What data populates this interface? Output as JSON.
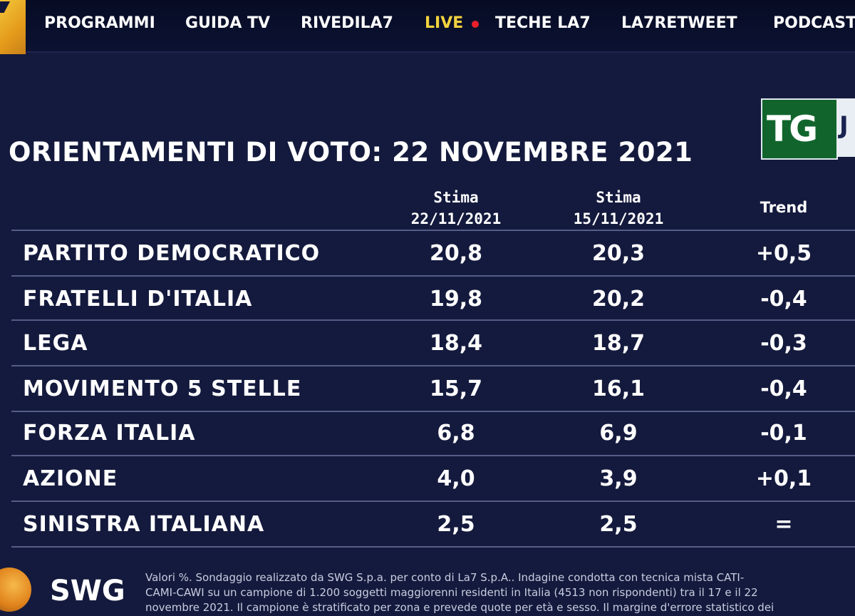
{
  "nav": {
    "items": [
      {
        "label": "PROGRAMMI"
      },
      {
        "label": "GUIDA TV"
      },
      {
        "label": "RIVEDILA7"
      },
      {
        "label": "LIVE"
      },
      {
        "label": "TECHE LA7"
      },
      {
        "label": "LA7RETWEET"
      },
      {
        "label": "PODCAST"
      }
    ]
  },
  "badge": {
    "text": "TG",
    "partial": "J"
  },
  "title": "ORIENTAMENTI DI VOTO: 22 NOVEMBRE 2021",
  "columns": {
    "c1_line1": "Stima",
    "c1_line2": "22/11/2021",
    "c2_line1": "Stima",
    "c2_line2": "15/11/2021",
    "c3": "Trend"
  },
  "rows": [
    {
      "party": "PARTITO DEMOCRATICO",
      "v1": "20,8",
      "v2": "20,3",
      "trend": "+0,5"
    },
    {
      "party": "FRATELLI D'ITALIA",
      "v1": "19,8",
      "v2": "20,2",
      "trend": "-0,4"
    },
    {
      "party": "LEGA",
      "v1": "18,4",
      "v2": "18,7",
      "trend": "-0,3"
    },
    {
      "party": "MOVIMENTO 5 STELLE",
      "v1": "15,7",
      "v2": "16,1",
      "trend": "-0,4"
    },
    {
      "party": "FORZA ITALIA",
      "v1": "6,8",
      "v2": "6,9",
      "trend": "-0,1"
    },
    {
      "party": "AZIONE",
      "v1": "4,0",
      "v2": "3,9",
      "trend": "+0,1"
    },
    {
      "party": "SINISTRA ITALIANA",
      "v1": "2,5",
      "v2": "2,5",
      "trend": "="
    }
  ],
  "footer": {
    "logo": "SWG",
    "note_line1": "Valori %. Sondaggio realizzato da SWG S.p.a. per conto di La7 S.p.A.. Indagine condotta con tecnica mista CATI-",
    "note_line2": "CAMI-CAWI su un campione di 1.200 soggetti maggiorenni residenti in Italia (4513 non rispondenti) tra il 17 e il 22",
    "note_line3": "novembre 2021. Il campione è stratificato per zona e prevede quote per età e sesso. Il margine d'errore statistico dei"
  },
  "colors": {
    "background": "#141a3d",
    "live": "#f3d33e",
    "live_dot": "#e8202a",
    "badge": "#11652c"
  }
}
